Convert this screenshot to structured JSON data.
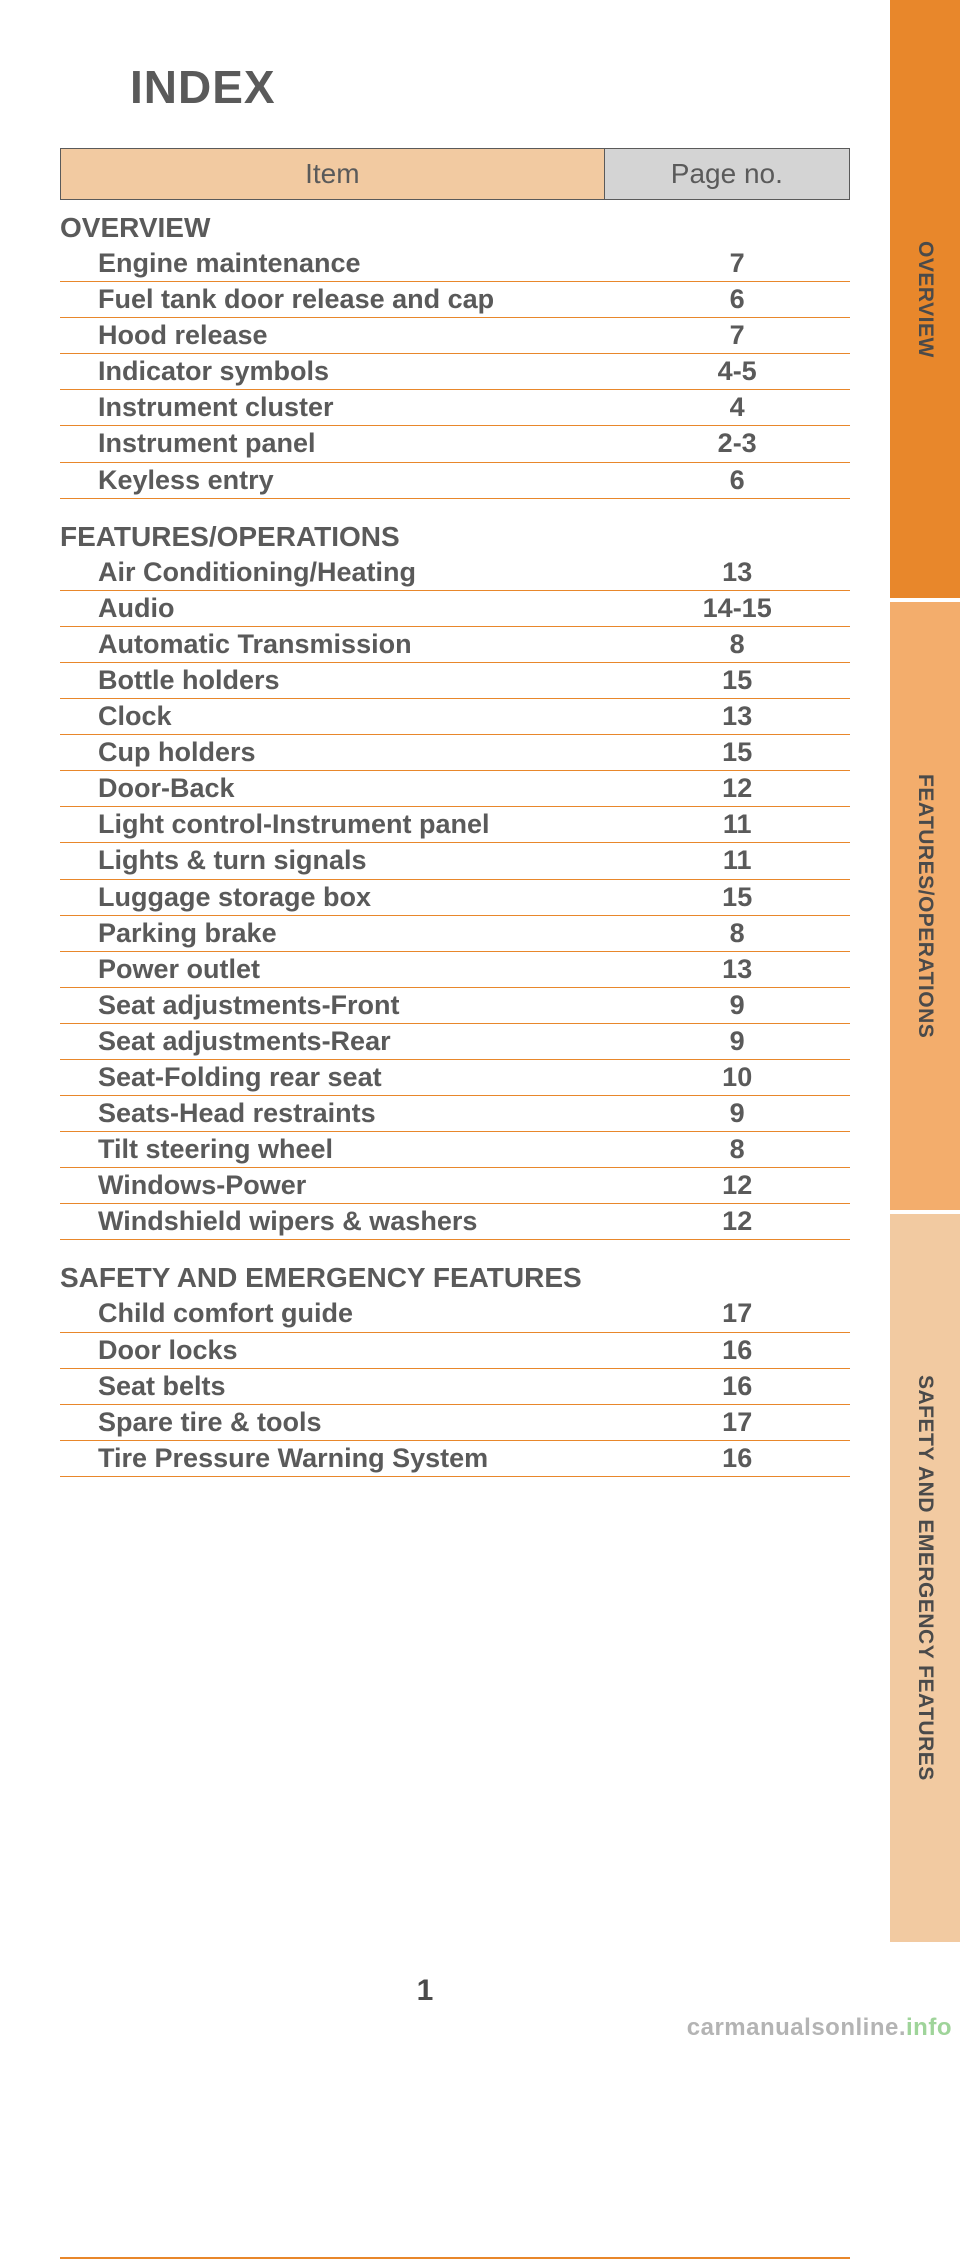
{
  "title": "INDEX",
  "header": {
    "item": "Item",
    "page": "Page no."
  },
  "sections": [
    {
      "name": "OVERVIEW",
      "rows": [
        {
          "item": "Engine maintenance",
          "page": "7"
        },
        {
          "item": "Fuel tank door release and cap",
          "page": "6"
        },
        {
          "item": "Hood release",
          "page": "7"
        },
        {
          "item": "Indicator symbols",
          "page": "4-5"
        },
        {
          "item": "Instrument cluster",
          "page": "4"
        },
        {
          "item": "Instrument panel",
          "page": "2-3"
        },
        {
          "item": "Keyless entry",
          "page": "6"
        }
      ]
    },
    {
      "name": "FEATURES/OPERATIONS",
      "rows": [
        {
          "item": "Air Conditioning/Heating",
          "page": "13"
        },
        {
          "item": "Audio",
          "page": "14-15"
        },
        {
          "item": "Automatic Transmission",
          "page": "8"
        },
        {
          "item": "Bottle holders",
          "page": "15"
        },
        {
          "item": "Clock",
          "page": "13"
        },
        {
          "item": "Cup holders",
          "page": "15"
        },
        {
          "item": "Door-Back",
          "page": "12"
        },
        {
          "item": "Light control-Instrument panel",
          "page": "11"
        },
        {
          "item": "Lights & turn signals",
          "page": "11"
        },
        {
          "item": "Luggage storage box",
          "page": "15"
        },
        {
          "item": "Parking brake",
          "page": "8"
        },
        {
          "item": "Power outlet",
          "page": "13"
        },
        {
          "item": "Seat adjustments-Front",
          "page": "9"
        },
        {
          "item": "Seat adjustments-Rear",
          "page": "9"
        },
        {
          "item": "Seat-Folding rear seat",
          "page": "10"
        },
        {
          "item": "Seats-Head restraints",
          "page": "9"
        },
        {
          "item": "Tilt steering wheel",
          "page": "8"
        },
        {
          "item": "Windows-Power",
          "page": "12"
        },
        {
          "item": "Windshield wipers & washers",
          "page": "12"
        }
      ]
    },
    {
      "name": "SAFETY AND EMERGENCY FEATURES",
      "rows": [
        {
          "item": "Child comfort guide",
          "page": "17"
        },
        {
          "item": "Door locks",
          "page": "16"
        },
        {
          "item": "Seat belts",
          "page": "16"
        },
        {
          "item": "Spare tire & tools",
          "page": "17"
        },
        {
          "item": "Tire Pressure Warning System",
          "page": "16"
        }
      ]
    }
  ],
  "pageNumber": "1",
  "tabs": {
    "overview": "OVERVIEW",
    "features": "FEATURES/OPERATIONS",
    "safety": "SAFETY AND EMERGENCY FEATURES"
  },
  "watermark": {
    "a": "carmanualsonline.",
    "b": "info"
  },
  "colors": {
    "accent": "#e8872b",
    "tab_overview_bg": "#e8872b",
    "tab_features_bg": "#f3ad6c",
    "tab_safety_bg": "#f2caa1",
    "header_item_bg": "#f2caa1",
    "header_page_bg": "#d4d4d4",
    "text": "#5a5a5a"
  }
}
